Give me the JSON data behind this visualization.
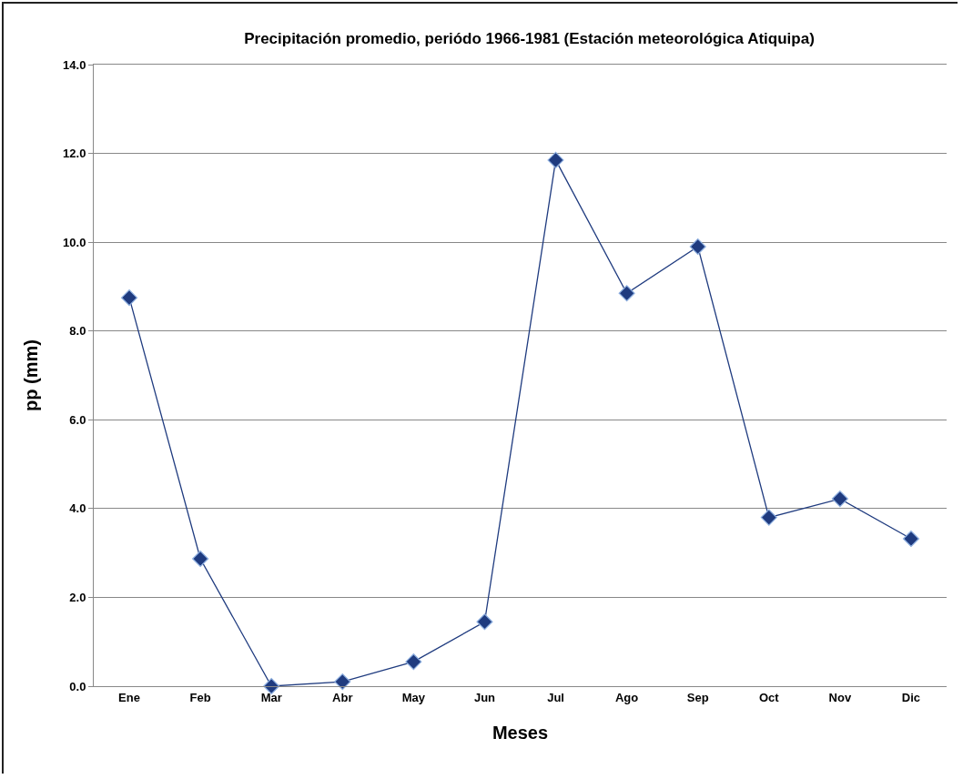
{
  "chart_data": {
    "type": "line",
    "title": "Precipitación promedio, periódo 1966-1981 (Estación meteorológica Atiquipa)",
    "xlabel": "Meses",
    "ylabel": "pp (mm)",
    "categories": [
      "Ene",
      "Feb",
      "Mar",
      "Abr",
      "May",
      "Jun",
      "Jul",
      "Ago",
      "Sep",
      "Oct",
      "Nov",
      "Dic"
    ],
    "series": [
      {
        "color": "#1f3b7f",
        "values": [
          8.75,
          2.87,
          0,
          0.1,
          0.55,
          1.45,
          11.85,
          8.85,
          9.9,
          3.8,
          4.22,
          3.32
        ]
      }
    ],
    "ylim": [
      0,
      14
    ],
    "yticks": [
      {
        "value": 0,
        "label": "0.0"
      },
      {
        "value": 2,
        "label": "2.0"
      },
      {
        "value": 4,
        "label": "4.0"
      },
      {
        "value": 6,
        "label": "6.0"
      },
      {
        "value": 8,
        "label": "8.0"
      },
      {
        "value": 10,
        "label": "10.0"
      },
      {
        "value": 12,
        "label": "12.0"
      },
      {
        "value": 14,
        "label": "14.0"
      }
    ],
    "grid": "y",
    "marker": "diamond",
    "line_style": "solid"
  }
}
